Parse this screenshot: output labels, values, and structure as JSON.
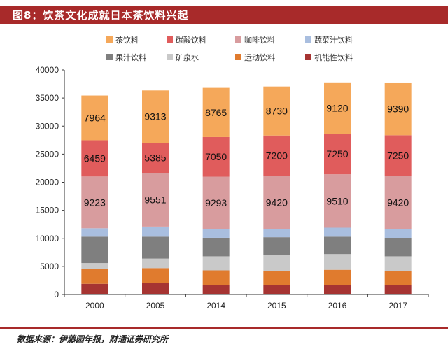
{
  "header": {
    "title": "图8：饮茶文化成就日本茶饮料兴起"
  },
  "footer": {
    "source": "数据来源：伊藤园年报，财通证券研究所"
  },
  "chart_data": {
    "type": "bar",
    "stacked": true,
    "categories": [
      "2000",
      "2005",
      "2014",
      "2015",
      "2016",
      "2017"
    ],
    "ylim": [
      0,
      40000
    ],
    "yticks": [
      0,
      5000,
      10000,
      15000,
      20000,
      25000,
      30000,
      35000,
      40000
    ],
    "legend_position": "top",
    "series": [
      {
        "name": "机能性饮料",
        "color": "#a63432",
        "values": [
          1900,
          2000,
          1700,
          1700,
          1700,
          1700
        ]
      },
      {
        "name": "运动饮料",
        "color": "#e07b2e",
        "values": [
          2700,
          2700,
          2600,
          2500,
          2700,
          2500
        ]
      },
      {
        "name": "矿泉水",
        "color": "#c9c9c9",
        "values": [
          1000,
          1700,
          2500,
          2800,
          2800,
          2600
        ]
      },
      {
        "name": "果汁饮料",
        "color": "#7f7f7f",
        "values": [
          4700,
          3900,
          3300,
          3200,
          3100,
          3200
        ]
      },
      {
        "name": "蔬菜汁饮料",
        "color": "#a9bedf",
        "values": [
          1500,
          1800,
          1600,
          1500,
          1600,
          1700
        ]
      },
      {
        "name": "咖啡饮料",
        "color": "#d89c9e",
        "values": [
          9223,
          9551,
          9293,
          9420,
          9510,
          9420
        ],
        "labels": true
      },
      {
        "name": "碳酸饮料",
        "color": "#e05c5c",
        "values": [
          6459,
          5385,
          7050,
          7200,
          7250,
          7250
        ],
        "labels": true
      },
      {
        "name": "茶饮料",
        "color": "#f5a85a",
        "values": [
          7964,
          9313,
          8765,
          8730,
          9120,
          9390
        ],
        "labels": true
      }
    ],
    "legend_order": [
      "茶饮料",
      "碳酸饮料",
      "咖啡饮料",
      "蔬菜汁饮料",
      "果汁饮料",
      "矿泉水",
      "运动饮料",
      "机能性饮料"
    ]
  }
}
